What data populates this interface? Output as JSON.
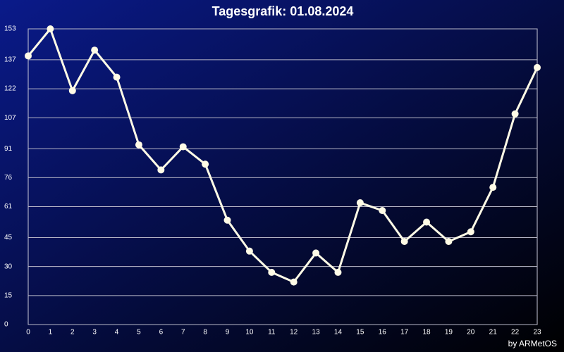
{
  "chart_data": {
    "type": "line",
    "title": "Tagesgrafik: 01.08.2024",
    "credit": "by ARMetOS",
    "x": [
      0,
      1,
      2,
      3,
      4,
      5,
      6,
      7,
      8,
      9,
      10,
      11,
      12,
      13,
      14,
      15,
      16,
      17,
      18,
      19,
      20,
      21,
      22,
      23
    ],
    "series": [
      {
        "color": "#fffbe6",
        "values": [
          139,
          153,
          121,
          142,
          128,
          93,
          80,
          92,
          83,
          54,
          38,
          27,
          22,
          37,
          27,
          63,
          59,
          43,
          53,
          43,
          48,
          71,
          109,
          133
        ]
      }
    ],
    "xlim": [
      0,
      23
    ],
    "xticks": [
      0,
      1,
      2,
      3,
      4,
      5,
      6,
      7,
      8,
      9,
      10,
      11,
      12,
      13,
      14,
      15,
      16,
      17,
      18,
      19,
      20,
      21,
      22,
      23
    ],
    "ylim": [
      0,
      153
    ],
    "yticks": [
      0,
      15,
      30,
      45,
      61,
      76,
      91,
      107,
      122,
      137,
      153
    ],
    "grid": true
  }
}
